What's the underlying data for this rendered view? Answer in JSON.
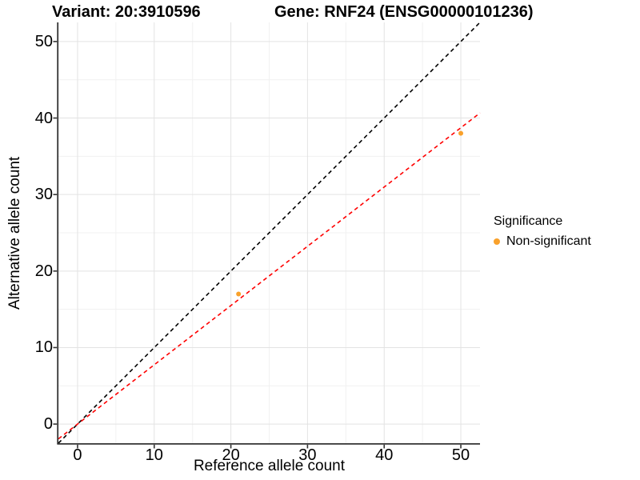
{
  "header": {
    "variant_title": "Variant: 20:3910596",
    "gene_title": "Gene: RNF24 (ENSG00000101236)"
  },
  "chart_data": {
    "type": "scatter",
    "titles": [
      "Variant: 20:3910596",
      "Gene: RNF24 (ENSG00000101236)"
    ],
    "xlabel": "Reference allele count",
    "ylabel": "Alternative allele count",
    "xlim": [
      -2.5,
      52.5
    ],
    "ylim": [
      -2.5,
      52.5
    ],
    "x_ticks": [
      0,
      10,
      20,
      30,
      40,
      50
    ],
    "y_ticks": [
      0,
      10,
      20,
      30,
      40,
      50
    ],
    "x_minor_gridlines": [
      5,
      15,
      25,
      35,
      45
    ],
    "y_minor_gridlines": [
      5,
      15,
      25,
      35,
      45
    ],
    "grid": "on",
    "legend_position": "right",
    "series": [
      {
        "name": "Non-significant",
        "marker": "circle",
        "color": "#F9A12B",
        "points": [
          {
            "x": 21,
            "y": 17
          },
          {
            "x": 50,
            "y": 38
          }
        ]
      }
    ],
    "reference_lines": [
      {
        "name": "identity-line",
        "equation": "y = x",
        "slope": 1.0,
        "intercept": 0,
        "color": "#000000",
        "dash": "dashed"
      },
      {
        "name": "fitted-ratio-line",
        "equation": "y = 0.7746x",
        "slope": 0.7746,
        "intercept": 0,
        "color": "#FF0000",
        "dash": "dashed"
      }
    ]
  },
  "legend": {
    "title": "Significance",
    "items": [
      {
        "label": "Non-significant",
        "color": "#F9A12B",
        "marker": "circle"
      }
    ]
  },
  "colors": {
    "background": "#FFFFFF",
    "point_orange": "#F9A12B",
    "line_red": "#FF0000",
    "line_black": "#000000",
    "grid_major": "#E3E3E3",
    "grid_minor": "#F1F1F1",
    "axis_line": "#333333",
    "text": "#000000"
  }
}
